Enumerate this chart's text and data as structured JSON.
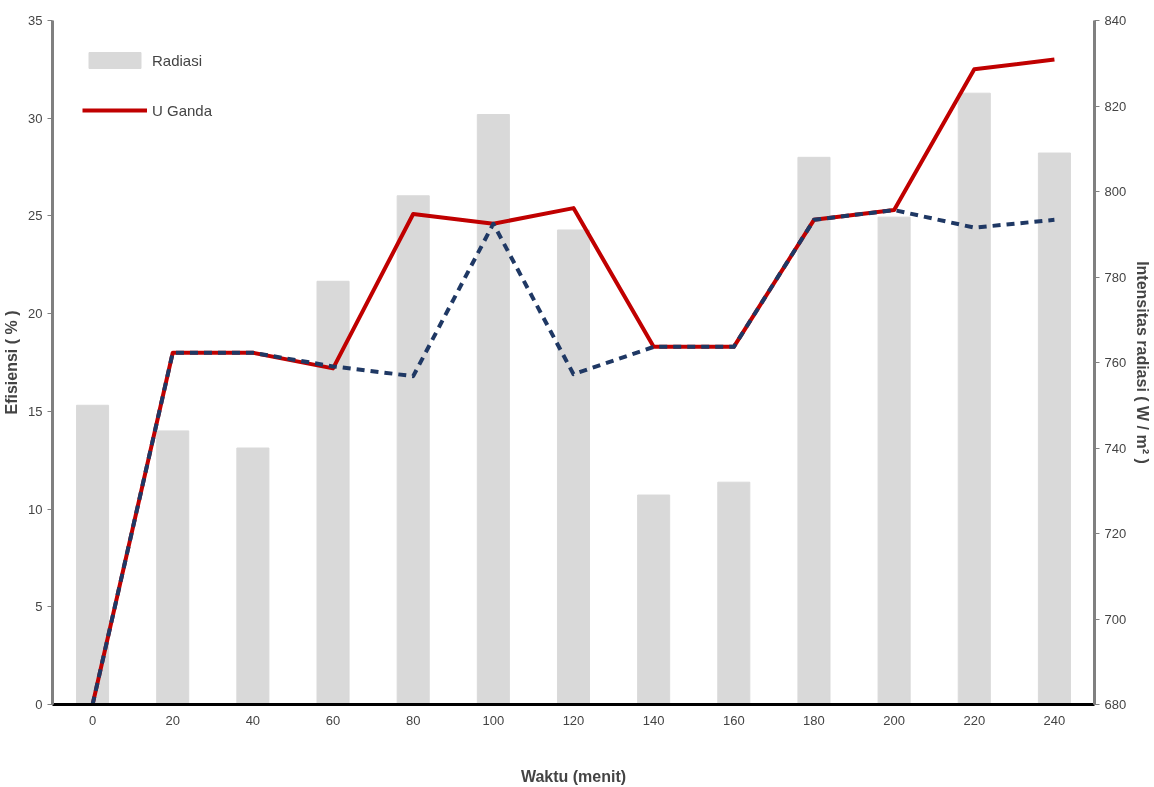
{
  "chart_data": {
    "type": "bar",
    "xlabel": "Waktu (menit)",
    "ylabel": "Efisiensi ( % )",
    "y2label": "Intensitas radiasi ( W / m² )",
    "categories": [
      "0",
      "20",
      "40",
      "60",
      "80",
      "100",
      "120",
      "140",
      "160",
      "180",
      "200",
      "220",
      "240"
    ],
    "series": [
      {
        "name": "Radiasi",
        "axis": "y2",
        "color": "#d9d9d9",
        "values": [
          750,
          744,
          740,
          779,
          799,
          818,
          791,
          729,
          732,
          808,
          794,
          823,
          809
        ]
      },
      {
        "name": "U Ganda",
        "type": "line",
        "color": "#c00000",
        "line_style": "solid",
        "values": [
          0,
          18,
          18,
          17.2,
          25.1,
          24.6,
          25.4,
          18.3,
          18.3,
          24.8,
          25.3,
          32.5,
          33
        ]
      },
      {
        "type": "line",
        "color": "#1f3864",
        "line_style": "dashed",
        "values": [
          0,
          18,
          18,
          17.3,
          16.8,
          24.6,
          16.9,
          18.3,
          18.3,
          24.8,
          25.3,
          24.4,
          24.8
        ]
      }
    ],
    "ylim": [
      0,
      35
    ],
    "yticks": [
      0,
      5,
      10,
      15,
      20,
      25,
      30,
      35
    ],
    "y2lim": [
      680,
      840
    ],
    "y2ticks": [
      680,
      700,
      720,
      740,
      760,
      780,
      800,
      820,
      840
    ],
    "grid": false,
    "legend": "top left",
    "marker": "none"
  }
}
